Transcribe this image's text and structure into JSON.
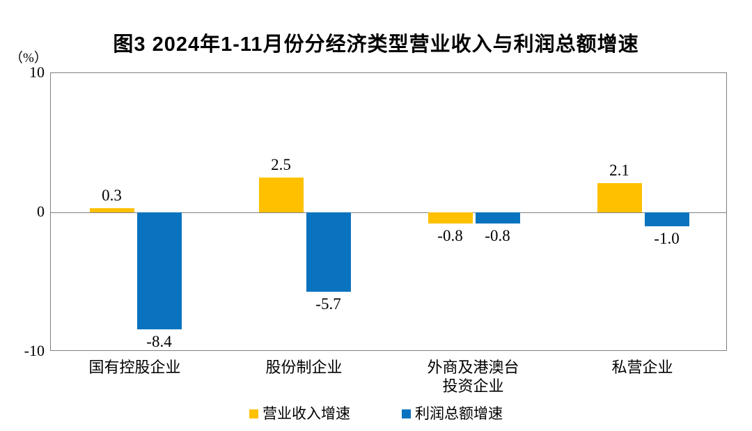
{
  "chart_data": {
    "type": "bar",
    "title": "图3  2024年1-11月份分经济类型营业收入与利润总额增速",
    "unit_label": "（%）",
    "categories": [
      "国有控股企业",
      "股份制企业",
      "外商及港澳台投资企业",
      "私营企业"
    ],
    "category_lines": [
      [
        "国有控股企业"
      ],
      [
        "股份制企业"
      ],
      [
        "外商及港澳台",
        "投资企业"
      ],
      [
        "私营企业"
      ]
    ],
    "series": [
      {
        "name": "营业收入增速",
        "color": "#FFC000",
        "values": [
          0.3,
          2.5,
          -0.8,
          2.1
        ],
        "labels": [
          "0.3",
          "2.5",
          "-0.8",
          "2.1"
        ]
      },
      {
        "name": "利润总额增速",
        "color": "#0A73BF",
        "values": [
          -8.4,
          -5.7,
          -0.8,
          -1.0
        ],
        "labels": [
          "-8.4",
          "-5.7",
          "-0.8",
          "-1.0"
        ]
      }
    ],
    "ylim": [
      -10,
      10
    ],
    "yticks": [
      10,
      0,
      -10
    ],
    "ytick_labels": [
      "10",
      "0",
      "-10"
    ],
    "grid": false,
    "legend_position": "bottom",
    "axis_color": "#7f7f7f",
    "label_color": "#000000"
  }
}
